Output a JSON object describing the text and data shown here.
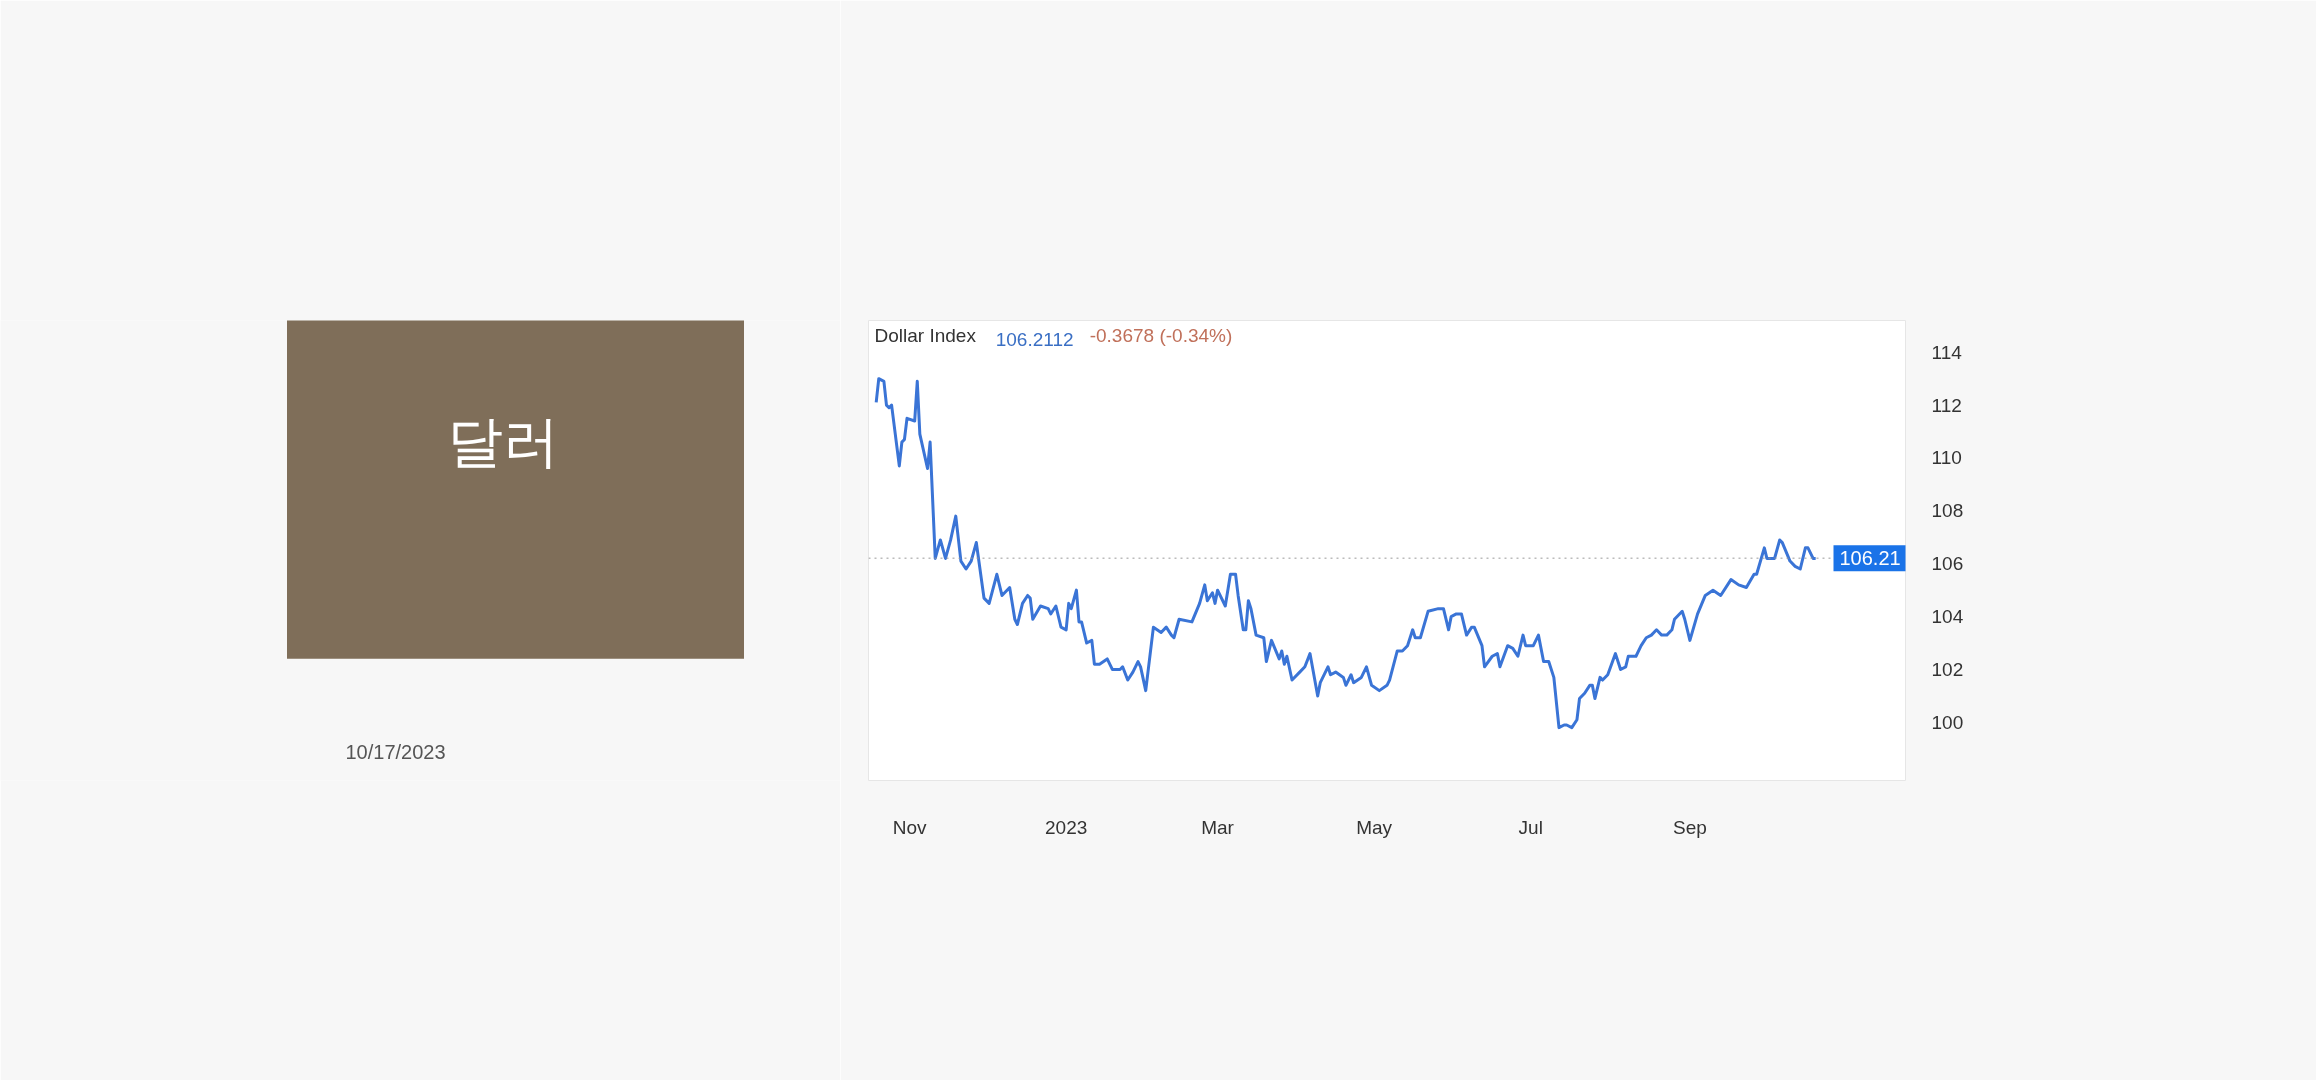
{
  "chart_data": {
    "type": "line",
    "title": "Dollar Index",
    "annotations": [
      "106.2112",
      "-0.3678 (-0.34%)",
      "달러",
      "10/17/2023"
    ],
    "x": [
      "2022-10-19",
      "2022-10-20",
      "2022-10-22",
      "2022-10-23",
      "2022-10-24",
      "2022-10-25",
      "2022-10-28",
      "2022-10-29",
      "2022-10-30",
      "2022-10-31",
      "2022-11-03",
      "2022-11-04",
      "2022-11-05",
      "2022-11-08",
      "2022-11-09",
      "2022-11-11",
      "2022-11-13",
      "2022-11-15",
      "2022-11-17",
      "2022-11-19",
      "2022-11-21",
      "2022-11-23",
      "2022-11-25",
      "2022-11-27",
      "2022-11-30",
      "2022-12-02",
      "2022-12-05",
      "2022-12-07",
      "2022-12-10",
      "2022-12-12",
      "2022-12-13",
      "2022-12-15",
      "2022-12-17",
      "2022-12-18",
      "2022-12-19",
      "2022-12-22",
      "2022-12-25",
      "2022-12-26",
      "2022-12-28",
      "2022-12-30",
      "2023-01-01",
      "2023-01-02",
      "2023-01-03",
      "2023-01-05",
      "2023-01-06",
      "2023-01-07",
      "2023-01-09",
      "2023-01-11",
      "2023-01-12",
      "2023-01-14",
      "2023-01-17",
      "2023-01-19",
      "2023-01-22",
      "2023-01-23",
      "2023-01-25",
      "2023-01-27",
      "2023-01-29",
      "2023-01-30",
      "2023-02-01",
      "2023-02-04",
      "2023-02-07",
      "2023-02-09",
      "2023-02-11",
      "2023-02-12",
      "2023-02-14",
      "2023-02-19",
      "2023-02-22",
      "2023-02-24",
      "2023-02-25",
      "2023-02-27",
      "2023-02-28",
      "2023-03-01",
      "2023-03-04",
      "2023-03-06",
      "2023-03-08",
      "2023-03-09",
      "2023-03-11",
      "2023-03-12",
      "2023-03-13",
      "2023-03-14",
      "2023-03-16",
      "2023-03-19",
      "2023-03-20",
      "2023-03-22",
      "2023-03-25",
      "2023-03-26",
      "2023-03-27",
      "2023-03-28",
      "2023-03-30",
      "2023-04-02",
      "2023-04-04",
      "2023-04-06",
      "2023-04-09",
      "2023-04-10",
      "2023-04-13",
      "2023-04-14",
      "2023-04-16",
      "2023-04-19",
      "2023-04-20",
      "2023-04-22",
      "2023-04-23",
      "2023-04-26",
      "2023-04-28",
      "2023-04-30",
      "2023-05-03",
      "2023-05-06",
      "2023-05-07",
      "2023-05-10",
      "2023-05-12",
      "2023-05-14",
      "2023-05-16",
      "2023-05-17",
      "2023-05-19",
      "2023-05-22",
      "2023-05-26",
      "2023-05-28",
      "2023-05-30",
      "2023-05-31",
      "2023-06-02",
      "2023-06-04",
      "2023-06-06",
      "2023-06-08",
      "2023-06-09",
      "2023-06-12",
      "2023-06-13",
      "2023-06-16",
      "2023-06-18",
      "2023-06-19",
      "2023-06-22",
      "2023-06-24",
      "2023-06-26",
      "2023-06-28",
      "2023-06-29",
      "2023-07-02",
      "2023-07-04",
      "2023-07-06",
      "2023-07-08",
      "2023-07-10",
      "2023-07-12",
      "2023-07-14",
      "2023-07-15",
      "2023-07-17",
      "2023-07-19",
      "2023-07-20",
      "2023-07-22",
      "2023-07-24",
      "2023-07-25",
      "2023-07-26",
      "2023-07-28",
      "2023-07-29",
      "2023-07-31",
      "2023-08-03",
      "2023-08-05",
      "2023-08-07",
      "2023-08-08",
      "2023-08-11",
      "2023-08-13",
      "2023-08-15",
      "2023-08-17",
      "2023-08-19",
      "2023-08-21",
      "2023-08-23",
      "2023-08-25",
      "2023-08-26",
      "2023-08-29",
      "2023-08-30",
      "2023-09-01",
      "2023-09-04",
      "2023-09-07",
      "2023-09-10",
      "2023-09-13",
      "2023-09-17",
      "2023-09-20",
      "2023-09-23",
      "2023-09-26",
      "2023-09-27",
      "2023-09-30",
      "2023-10-01",
      "2023-10-04",
      "2023-10-06",
      "2023-10-07",
      "2023-10-10",
      "2023-10-12",
      "2023-10-14",
      "2023-10-16",
      "2023-10-17",
      "2023-10-19",
      "2023-10-20"
    ],
    "series": [
      {
        "color": "#3a74d6",
        "values": [
          112.1,
          113.0,
          112.9,
          112.0,
          111.9,
          112.0,
          109.7,
          110.6,
          110.7,
          111.5,
          111.4,
          112.9,
          110.9,
          109.6,
          110.6,
          106.2,
          106.9,
          106.2,
          106.9,
          107.8,
          106.1,
          105.8,
          106.1,
          106.8,
          104.7,
          104.5,
          105.6,
          104.8,
          105.1,
          103.9,
          103.7,
          104.5,
          104.8,
          104.7,
          103.9,
          104.4,
          104.3,
          104.1,
          104.4,
          103.6,
          103.5,
          104.5,
          104.3,
          105.0,
          103.8,
          103.8,
          103.0,
          103.1,
          102.2,
          102.2,
          102.4,
          102.0,
          102.0,
          102.1,
          101.6,
          101.9,
          102.3,
          102.1,
          101.2,
          103.6,
          103.4,
          103.6,
          103.3,
          103.2,
          103.9,
          103.8,
          104.5,
          105.2,
          104.6,
          104.9,
          104.5,
          105.0,
          104.4,
          105.6,
          105.6,
          104.8,
          103.5,
          103.5,
          104.6,
          104.3,
          103.3,
          103.2,
          102.3,
          103.1,
          102.4,
          102.7,
          102.2,
          102.5,
          101.6,
          101.9,
          102.1,
          102.6,
          101.0,
          101.5,
          102.1,
          101.8,
          101.9,
          101.7,
          101.4,
          101.8,
          101.5,
          101.7,
          102.1,
          101.4,
          101.2,
          101.4,
          101.6,
          102.7,
          102.7,
          102.9,
          103.5,
          103.2,
          103.2,
          104.2,
          104.3,
          104.3,
          103.5,
          104.0,
          104.1,
          104.1,
          103.3,
          103.6,
          103.6,
          102.9,
          102.1,
          102.5,
          102.6,
          102.1,
          102.9,
          102.8,
          102.5,
          103.3,
          102.9,
          102.9,
          103.3,
          102.3,
          102.3,
          101.7,
          99.8,
          99.9,
          99.9,
          99.8,
          100.1,
          100.9,
          101.1,
          101.4,
          101.4,
          100.9,
          101.7,
          101.6,
          101.8,
          102.6,
          102.0,
          102.1,
          102.5,
          102.5,
          102.9,
          103.2,
          103.3,
          103.5,
          103.3,
          103.3,
          103.5,
          103.9,
          104.2,
          103.9,
          103.1,
          104.1,
          104.8,
          105.0,
          104.8,
          105.4,
          105.2,
          105.1,
          105.6,
          105.6,
          106.6,
          106.2,
          106.2,
          106.9,
          106.8,
          106.1,
          105.9,
          105.8,
          106.6,
          106.6,
          106.2,
          106.2
        ]
      }
    ],
    "xlim": [
      "2022-10-16",
      "2023-11-24"
    ],
    "xticks": [
      {
        "value": "2022-11-01",
        "label": "Nov"
      },
      {
        "value": "2023-01-01",
        "label": "2023"
      },
      {
        "value": "2023-03-01",
        "label": "Mar"
      },
      {
        "value": "2023-05-01",
        "label": "May"
      },
      {
        "value": "2023-07-01",
        "label": "Jul"
      },
      {
        "value": "2023-09-01",
        "label": "Sep"
      }
    ],
    "ylim": [
      97.8,
      115.2
    ],
    "yticks": [
      100,
      102,
      104,
      106,
      108,
      110,
      112,
      114
    ],
    "ref_lines": [
      {
        "axis": "y",
        "value": 106.21,
        "label": "106.21",
        "color": "#999999",
        "line_style": "dotted"
      }
    ],
    "grid": false,
    "line_style": "solid",
    "marker": "none"
  }
}
